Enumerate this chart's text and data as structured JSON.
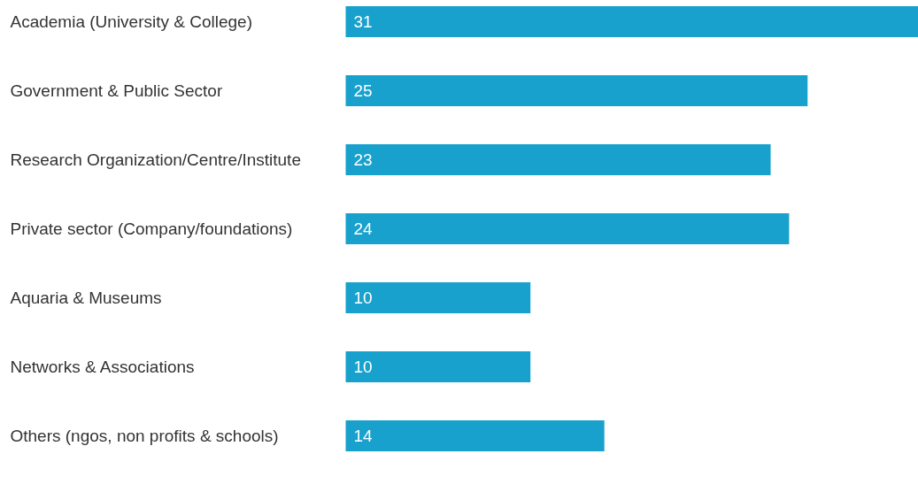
{
  "chart_data": {
    "type": "bar",
    "orientation": "horizontal",
    "categories": [
      "Academia (University & College)",
      "Government & Public Sector",
      "Research Organization/Centre/Institute",
      "Private sector (Company/foundations)",
      "Aquaria & Museums",
      "Networks & Associations",
      "Others (ngos, non profits & schools)"
    ],
    "values": [
      31,
      25,
      23,
      24,
      10,
      10,
      14
    ],
    "color": "#18a1cd",
    "data_labels": true
  }
}
